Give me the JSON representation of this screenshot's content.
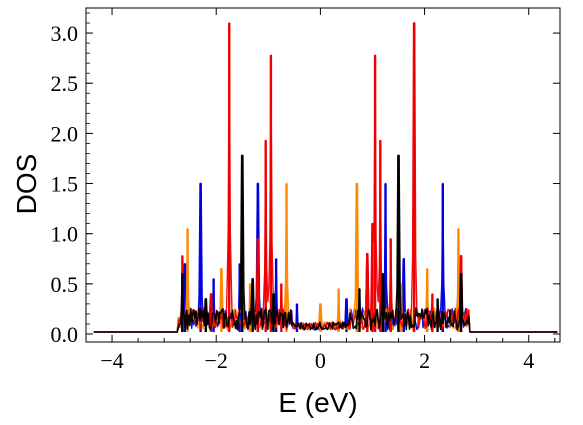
{
  "chart_data": {
    "type": "line",
    "title": "",
    "xlabel": "E (eV)",
    "ylabel": "DOS",
    "xlim": [
      -4.5,
      4.6
    ],
    "ylim": [
      -0.08,
      3.25
    ],
    "xticks": [
      -4,
      -2,
      0,
      2,
      4
    ],
    "xtick_labels": [
      "−4",
      "−2",
      "0",
      "2",
      "4"
    ],
    "yticks": [
      0.0,
      0.5,
      1.0,
      1.5,
      2.0,
      2.5,
      3.0
    ],
    "ytick_labels": [
      "0.0",
      "0.5",
      "1.0",
      "1.5",
      "2.0",
      "2.5",
      "3.0"
    ],
    "grid": false,
    "legend": "none",
    "baseline": 0.02,
    "band_edges": [
      -2.75,
      2.85
    ],
    "series": [
      {
        "color": "#0000dd",
        "peaks": [
          {
            "x": -2.6,
            "y": 0.7
          },
          {
            "x": -2.3,
            "y": 1.5
          },
          {
            "x": -2.05,
            "y": 0.55
          },
          {
            "x": -1.55,
            "y": 0.7
          },
          {
            "x": -1.2,
            "y": 1.5
          },
          {
            "x": -0.85,
            "y": 0.75
          },
          {
            "x": -0.45,
            "y": 0.3
          },
          {
            "x": 0.5,
            "y": 0.35
          },
          {
            "x": 0.9,
            "y": 0.8
          },
          {
            "x": 1.25,
            "y": 1.5
          },
          {
            "x": 1.6,
            "y": 0.75
          },
          {
            "x": 2.05,
            "y": 0.55
          },
          {
            "x": 2.35,
            "y": 1.5
          },
          {
            "x": 2.65,
            "y": 0.7
          }
        ]
      },
      {
        "color": "#ff8800",
        "peaks": [
          {
            "x": -2.55,
            "y": 1.05
          },
          {
            "x": -1.9,
            "y": 0.65
          },
          {
            "x": -1.35,
            "y": 0.5
          },
          {
            "x": -0.65,
            "y": 1.5
          },
          {
            "x": 0.0,
            "y": 0.3
          },
          {
            "x": 0.35,
            "y": 0.45
          },
          {
            "x": 0.7,
            "y": 1.5
          },
          {
            "x": 1.55,
            "y": 0.5
          },
          {
            "x": 2.05,
            "y": 0.65
          },
          {
            "x": 2.65,
            "y": 1.05
          }
        ]
      },
      {
        "color": "#ee0000",
        "peaks": [
          {
            "x": -2.65,
            "y": 0.78
          },
          {
            "x": -2.1,
            "y": 0.4
          },
          {
            "x": -1.75,
            "y": 3.1
          },
          {
            "x": -1.2,
            "y": 0.95
          },
          {
            "x": -1.05,
            "y": 1.93
          },
          {
            "x": -0.95,
            "y": 2.78
          },
          {
            "x": -0.75,
            "y": 0.5
          },
          {
            "x": 0.9,
            "y": 0.8
          },
          {
            "x": 1.0,
            "y": 1.1
          },
          {
            "x": 1.05,
            "y": 2.78
          },
          {
            "x": 1.15,
            "y": 1.93
          },
          {
            "x": 1.35,
            "y": 0.95
          },
          {
            "x": 1.8,
            "y": 3.1
          },
          {
            "x": 2.15,
            "y": 0.4
          },
          {
            "x": 2.7,
            "y": 0.78
          }
        ]
      },
      {
        "color": "#000000",
        "peaks": [
          {
            "x": -2.65,
            "y": 0.6
          },
          {
            "x": -2.2,
            "y": 0.35
          },
          {
            "x": -1.5,
            "y": 1.78
          },
          {
            "x": -1.3,
            "y": 0.55
          },
          {
            "x": -0.9,
            "y": 0.4
          },
          {
            "x": 0.75,
            "y": 0.45
          },
          {
            "x": 1.2,
            "y": 0.6
          },
          {
            "x": 1.5,
            "y": 1.78
          },
          {
            "x": 2.25,
            "y": 0.35
          },
          {
            "x": 2.7,
            "y": 0.6
          }
        ]
      }
    ]
  }
}
